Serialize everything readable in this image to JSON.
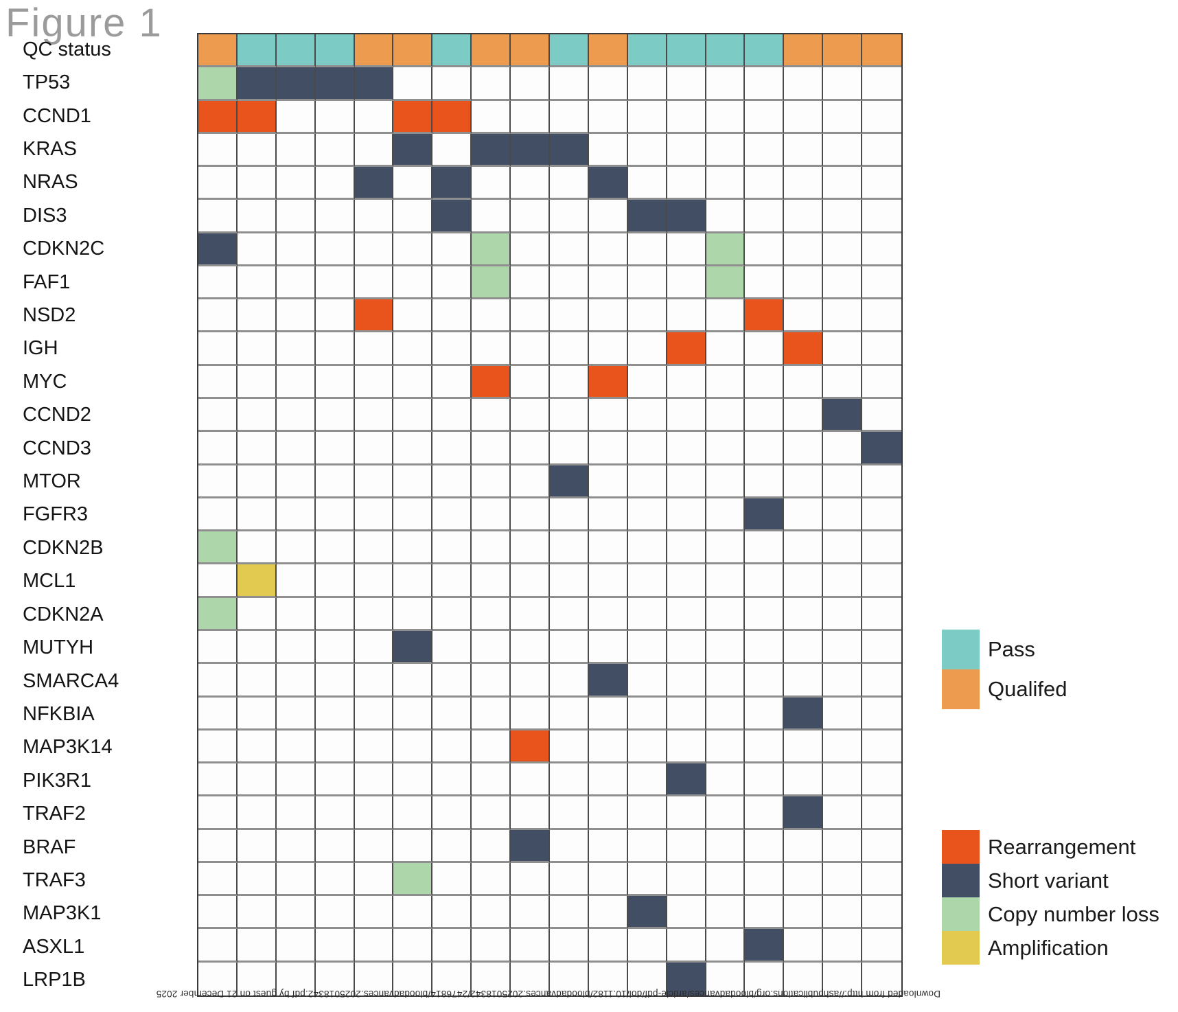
{
  "figure": {
    "title": "Figure 1"
  },
  "watermark": {
    "text": "Downloaded from http://ashpublications.org/bloodadvances/article-pdf/doi/10.1182/bloodadvances.2025018342/2476814/bloodadvances.2025018342.pdf by guest on 21 December 2025"
  },
  "legend": {
    "qc": [
      {
        "label": "Pass",
        "color": "#7CCBC5"
      },
      {
        "label": "Qualifed",
        "color": "#EC9B4F"
      }
    ],
    "alterations": [
      {
        "label": "Rearrangement",
        "color": "#E9541D"
      },
      {
        "label": "Short variant",
        "color": "#414E63"
      },
      {
        "label": "Copy number loss",
        "color": "#ADD6AA"
      },
      {
        "label": "Amplification",
        "color": "#E2C94F"
      }
    ]
  },
  "chart_data": {
    "type": "heatmap",
    "title": "Figure 1",
    "n_columns": 18,
    "legend_position": "right",
    "code_meanings": {
      "P": "Pass",
      "Q": "Qualifed",
      "S": "Short variant",
      "R": "Rearrangement",
      "L": "Copy number loss",
      "A": "Amplification",
      "": "none"
    },
    "colors": {
      "P": "#7CCBC5",
      "Q": "#EC9B4F",
      "S": "#414E63",
      "R": "#E9541D",
      "L": "#ADD6AA",
      "A": "#E2C94F"
    },
    "grid_lines": {
      "vertical": "#4A4A4A",
      "horizontal": "#8F8F8F",
      "border": "#3A3A3A"
    },
    "rows": [
      {
        "label": "QC status",
        "cells": [
          "Q",
          "P",
          "P",
          "P",
          "Q",
          "Q",
          "P",
          "Q",
          "Q",
          "P",
          "Q",
          "P",
          "P",
          "P",
          "P",
          "Q",
          "Q",
          "Q"
        ]
      },
      {
        "label": "TP53",
        "cells": [
          "L",
          "S",
          "S",
          "S",
          "S",
          "",
          "",
          "",
          "",
          "",
          "",
          "",
          "",
          "",
          "",
          "",
          "",
          ""
        ]
      },
      {
        "label": "CCND1",
        "cells": [
          "R",
          "R",
          "",
          "",
          "",
          "R",
          "R",
          "",
          "",
          "",
          "",
          "",
          "",
          "",
          "",
          "",
          "",
          ""
        ]
      },
      {
        "label": "KRAS",
        "cells": [
          "",
          "",
          "",
          "",
          "",
          "S",
          "",
          "S",
          "S",
          "S",
          "",
          "",
          "",
          "",
          "",
          "",
          "",
          ""
        ]
      },
      {
        "label": "NRAS",
        "cells": [
          "",
          "",
          "",
          "",
          "S",
          "",
          "S",
          "",
          "",
          "",
          "S",
          "",
          "",
          "",
          "",
          "",
          "",
          ""
        ]
      },
      {
        "label": "DIS3",
        "cells": [
          "",
          "",
          "",
          "",
          "",
          "",
          "S",
          "",
          "",
          "",
          "",
          "S",
          "S",
          "",
          "",
          "",
          "",
          ""
        ]
      },
      {
        "label": "CDKN2C",
        "cells": [
          "S",
          "",
          "",
          "",
          "",
          "",
          "",
          "L",
          "",
          "",
          "",
          "",
          "",
          "L",
          "",
          "",
          "",
          ""
        ]
      },
      {
        "label": "FAF1",
        "cells": [
          "",
          "",
          "",
          "",
          "",
          "",
          "",
          "L",
          "",
          "",
          "",
          "",
          "",
          "L",
          "",
          "",
          "",
          ""
        ]
      },
      {
        "label": "NSD2",
        "cells": [
          "",
          "",
          "",
          "",
          "R",
          "",
          "",
          "",
          "",
          "",
          "",
          "",
          "",
          "",
          "R",
          "",
          "",
          ""
        ]
      },
      {
        "label": "IGH",
        "cells": [
          "",
          "",
          "",
          "",
          "",
          "",
          "",
          "",
          "",
          "",
          "",
          "",
          "R",
          "",
          "",
          "R",
          "",
          ""
        ]
      },
      {
        "label": "MYC",
        "cells": [
          "",
          "",
          "",
          "",
          "",
          "",
          "",
          "R",
          "",
          "",
          "R",
          "",
          "",
          "",
          "",
          "",
          "",
          ""
        ]
      },
      {
        "label": "CCND2",
        "cells": [
          "",
          "",
          "",
          "",
          "",
          "",
          "",
          "",
          "",
          "",
          "",
          "",
          "",
          "",
          "",
          "",
          "S",
          ""
        ]
      },
      {
        "label": "CCND3",
        "cells": [
          "",
          "",
          "",
          "",
          "",
          "",
          "",
          "",
          "",
          "",
          "",
          "",
          "",
          "",
          "",
          "",
          "",
          "S"
        ]
      },
      {
        "label": "MTOR",
        "cells": [
          "",
          "",
          "",
          "",
          "",
          "",
          "",
          "",
          "",
          "S",
          "",
          "",
          "",
          "",
          "",
          "",
          "",
          ""
        ]
      },
      {
        "label": "FGFR3",
        "cells": [
          "",
          "",
          "",
          "",
          "",
          "",
          "",
          "",
          "",
          "",
          "",
          "",
          "",
          "",
          "S",
          "",
          "",
          ""
        ]
      },
      {
        "label": "CDKN2B",
        "cells": [
          "L",
          "",
          "",
          "",
          "",
          "",
          "",
          "",
          "",
          "",
          "",
          "",
          "",
          "",
          "",
          "",
          "",
          ""
        ]
      },
      {
        "label": "MCL1",
        "cells": [
          "",
          "A",
          "",
          "",
          "",
          "",
          "",
          "",
          "",
          "",
          "",
          "",
          "",
          "",
          "",
          "",
          "",
          ""
        ]
      },
      {
        "label": "CDKN2A",
        "cells": [
          "L",
          "",
          "",
          "",
          "",
          "",
          "",
          "",
          "",
          "",
          "",
          "",
          "",
          "",
          "",
          "",
          "",
          ""
        ]
      },
      {
        "label": "MUTYH",
        "cells": [
          "",
          "",
          "",
          "",
          "",
          "S",
          "",
          "",
          "",
          "",
          "",
          "",
          "",
          "",
          "",
          "",
          "",
          ""
        ]
      },
      {
        "label": "SMARCA4",
        "cells": [
          "",
          "",
          "",
          "",
          "",
          "",
          "",
          "",
          "",
          "",
          "S",
          "",
          "",
          "",
          "",
          "",
          "",
          ""
        ]
      },
      {
        "label": "NFKBIA",
        "cells": [
          "",
          "",
          "",
          "",
          "",
          "",
          "",
          "",
          "",
          "",
          "",
          "",
          "",
          "",
          "",
          "S",
          "",
          ""
        ]
      },
      {
        "label": "MAP3K14",
        "cells": [
          "",
          "",
          "",
          "",
          "",
          "",
          "",
          "",
          "R",
          "",
          "",
          "",
          "",
          "",
          "",
          "",
          "",
          ""
        ]
      },
      {
        "label": "PIK3R1",
        "cells": [
          "",
          "",
          "",
          "",
          "",
          "",
          "",
          "",
          "",
          "",
          "",
          "",
          "S",
          "",
          "",
          "",
          "",
          ""
        ]
      },
      {
        "label": "TRAF2",
        "cells": [
          "",
          "",
          "",
          "",
          "",
          "",
          "",
          "",
          "",
          "",
          "",
          "",
          "",
          "",
          "",
          "S",
          "",
          ""
        ]
      },
      {
        "label": "BRAF",
        "cells": [
          "",
          "",
          "",
          "",
          "",
          "",
          "",
          "",
          "S",
          "",
          "",
          "",
          "",
          "",
          "",
          "",
          "",
          ""
        ]
      },
      {
        "label": "TRAF3",
        "cells": [
          "",
          "",
          "",
          "",
          "",
          "L",
          "",
          "",
          "",
          "",
          "",
          "",
          "",
          "",
          "",
          "",
          "",
          ""
        ]
      },
      {
        "label": "MAP3K1",
        "cells": [
          "",
          "",
          "",
          "",
          "",
          "",
          "",
          "",
          "",
          "",
          "",
          "S",
          "",
          "",
          "",
          "",
          "",
          ""
        ]
      },
      {
        "label": "ASXL1",
        "cells": [
          "",
          "",
          "",
          "",
          "",
          "",
          "",
          "",
          "",
          "",
          "",
          "",
          "",
          "",
          "S",
          "",
          "",
          ""
        ]
      },
      {
        "label": "LRP1B",
        "cells": [
          "",
          "",
          "",
          "",
          "",
          "",
          "",
          "",
          "",
          "",
          "",
          "",
          "S",
          "",
          "",
          "",
          "",
          ""
        ]
      }
    ]
  }
}
